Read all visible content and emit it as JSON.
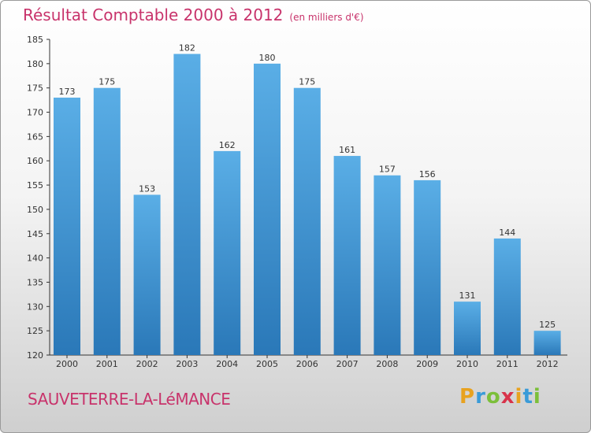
{
  "title": "Résultat Comptable 2000 à 2012",
  "unit": "(en milliers d'€)",
  "commune": "SAUVETERRE-LA-LéMANCE",
  "logo": {
    "text": "Proxiti",
    "letters": [
      "P",
      "r",
      "o",
      "x",
      "i",
      "t",
      "i"
    ],
    "colors": [
      "#e8a21f",
      "#3a9bd8",
      "#7cbf3a",
      "#d8334a",
      "#e8a21f",
      "#3a9bd8",
      "#7cbf3a"
    ]
  },
  "colors": {
    "title": "#c8336b",
    "bar_top": "#5aaee6",
    "bar_bottom": "#2a78b8"
  },
  "chart_data": {
    "type": "bar",
    "categories": [
      "2000",
      "2001",
      "2002",
      "2003",
      "2004",
      "2005",
      "2006",
      "2007",
      "2008",
      "2009",
      "2010",
      "2011",
      "2012"
    ],
    "values": [
      173,
      175,
      153,
      182,
      162,
      180,
      175,
      161,
      157,
      156,
      131,
      144,
      125
    ],
    "ylim": [
      120,
      185
    ],
    "yticks": [
      120,
      125,
      130,
      135,
      140,
      145,
      150,
      155,
      160,
      165,
      170,
      175,
      180,
      185
    ],
    "grid": false,
    "legend": "none"
  }
}
